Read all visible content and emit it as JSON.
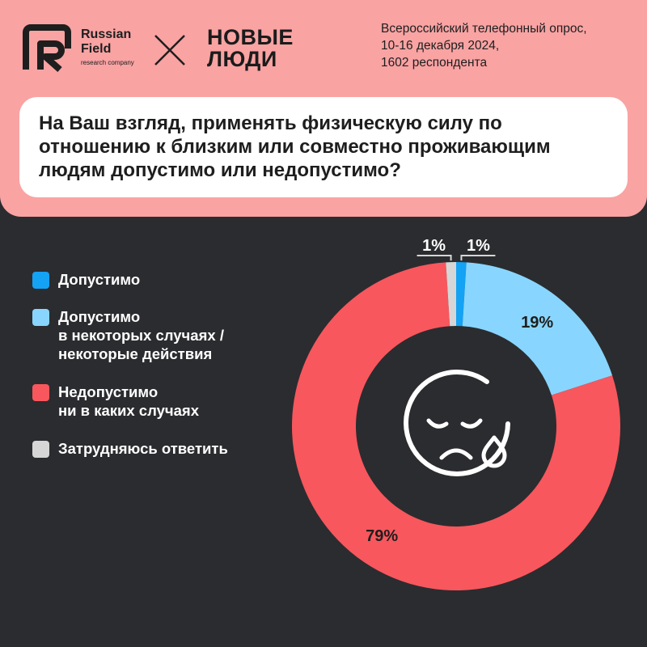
{
  "header": {
    "brand1_name": "Russian Field",
    "brand1_sub": "research company",
    "brand2_name": "НОВЫЕ ЛЮДИ",
    "survey_lines": [
      "Всероссийский телефонный опрос,",
      "10-16 декабря 2024,",
      "1602 респондента"
    ]
  },
  "question": "На Ваш взгляд, применять физическую силу по отношению к близким или совместно проживающим людям допустимо или недопустимо?",
  "legend": [
    {
      "label": "Допустимо",
      "color": "#14a2f5"
    },
    {
      "label": "Допустимо\nв некоторых случаях /\nнекоторые действия",
      "color": "#88d6ff"
    },
    {
      "label": "Недопустимо\nни в каких случаях",
      "color": "#f8575d"
    },
    {
      "label": "Затрудняюсь ответить",
      "color": "#d6d6d6"
    }
  ],
  "center_icon": "sad-face-tear-icon",
  "chart_data": {
    "type": "pie",
    "donut": true,
    "title": "",
    "categories": [
      "Допустимо",
      "Допустимо в некоторых случаях / некоторые действия",
      "Недопустимо ни в каких случаях",
      "Затрудняюсь ответить"
    ],
    "values": [
      1,
      19,
      79,
      1
    ],
    "labels": [
      "1%",
      "19%",
      "79%",
      "1%"
    ],
    "colors": [
      "#14a2f5",
      "#88d6ff",
      "#f8575d",
      "#d6d6d6"
    ]
  }
}
